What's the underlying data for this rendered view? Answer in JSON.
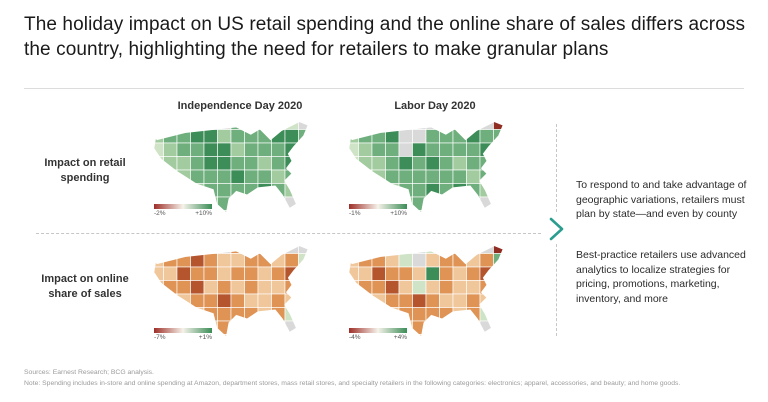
{
  "slide": {
    "title": "The holiday impact on US retail spending and the online share of sales differs across the country, highlighting the need for retailers to make granular plans",
    "accent_color": "#2a9d8f",
    "footer": {
      "sources": "Sources: Earnest Research; BCG analysis.",
      "note": "Note: Spending includes in-store and online spending at Amazon, department stores, mass retail stores, and specialty retailers in the following categories: electronics; apparel, accessories, and beauty; and home goods."
    }
  },
  "right_panel": {
    "paragraphs": [
      "To respond to and take advantage of geographic variations, retailers must plan by state—and even by county",
      "Best-practice retailers use advanced analytics to localize strategies for pricing, promotions, marketing, inventory, and more"
    ]
  },
  "chart_data": {
    "type": "heatmap",
    "subtype": "us-state-choropleth",
    "columns": [
      "Independence Day 2020",
      "Labor Day 2020"
    ],
    "rows": [
      "Impact on retail spending",
      "Impact on online share of sales"
    ],
    "legend_gradient": [
      "#9e2f28",
      "#f5f2ea",
      "#3c8d57"
    ],
    "palette": {
      "0": "#d9d9d9",
      "1": "#eef0e6",
      "2": "#cfe3c6",
      "3": "#a3cba0",
      "4": "#6faf7d",
      "5": "#3c8d57",
      "6": "#f0c79a",
      "7": "#df9355",
      "8": "#b5552e",
      "9": "#8f2d22"
    },
    "maps": [
      {
        "name": "independence-day-retail-spending",
        "column": "Independence Day 2020",
        "row": "Impact on retail spending",
        "legend": {
          "min": "-2%",
          "max": "+10%"
        },
        "pattern": [
          "04478045532000",
          "34455344455420",
          "23445534445540",
          "23345544345450",
          "22344454434400",
          "00234444543000",
          "00023444450000",
          "00000344400000"
        ]
      },
      {
        "name": "labor-day-retail-spending",
        "column": "Labor Day 2020",
        "row": "Impact on retail spending",
        "legend": {
          "min": "-1%",
          "max": "+10%"
        },
        "pattern": [
          "00445004450900",
          "34450044454400",
          "23440544445400",
          "23345454344450",
          "22344444434400",
          "00234454543000",
          "00023444450000",
          "00000344400000"
        ]
      },
      {
        "name": "independence-day-online-share",
        "column": "Independence Day 2020",
        "row": "Impact on online share of sales",
        "legend": {
          "min": "-7%",
          "max": "+1%"
        },
        "pattern": [
          "06678076620000",
          "67787667767200",
          "66877677678700",
          "67786767667600",
          "66677876676600",
          "00667777672000",
          "00066777760000",
          "00000677700000"
        ]
      },
      {
        "name": "labor-day-online-share",
        "column": "Labor Day 2020",
        "row": "Impact on online share of sales",
        "legend": {
          "min": "-4%",
          "max": "+4%"
        },
        "pattern": [
          "06670026640900",
          "67762067767400",
          "66877657678700",
          "67786267667600",
          "66677876676600",
          "00667777672000",
          "00066777760000",
          "00000677700000"
        ]
      }
    ]
  }
}
